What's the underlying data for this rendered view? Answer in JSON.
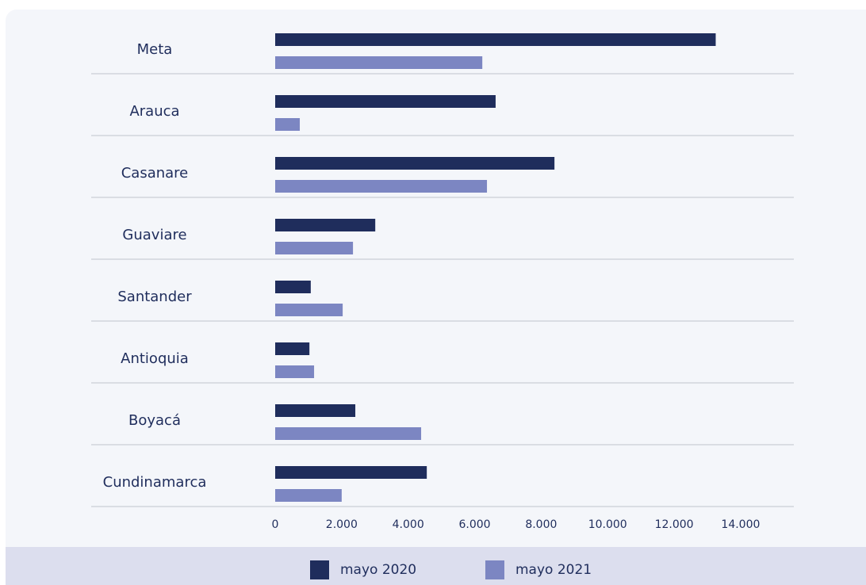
{
  "chart_data": {
    "type": "hbar",
    "categories": [
      "Meta",
      "Arauca",
      "Casanare",
      "Guaviare",
      "Santander",
      "Antioquia",
      "Boyacá",
      "Cundinamarca"
    ],
    "series": [
      {
        "name": "mayo 2020",
        "color": "#1f2d5c",
        "values": [
          13250,
          6630,
          8400,
          3010,
          1070,
          1030,
          2410,
          4560
        ]
      },
      {
        "name": "mayo 2021",
        "color": "#7c86c2",
        "values": [
          6230,
          740,
          6370,
          2340,
          2030,
          1170,
          4390,
          2000
        ]
      }
    ],
    "xlim": [
      0,
      15600
    ],
    "xticks": [
      0,
      {
        "value": 2000,
        "label": "2.000"
      },
      {
        "value": 4000,
        "label": "4.000"
      },
      {
        "value": 6000,
        "label": "6.000"
      },
      {
        "value": 8000,
        "label": "8.000"
      },
      {
        "value": 10000,
        "label": "10.000"
      },
      {
        "value": 12000,
        "label": "12.000"
      },
      {
        "value": 14000,
        "label": "14.000"
      }
    ],
    "legend": "bottom"
  }
}
